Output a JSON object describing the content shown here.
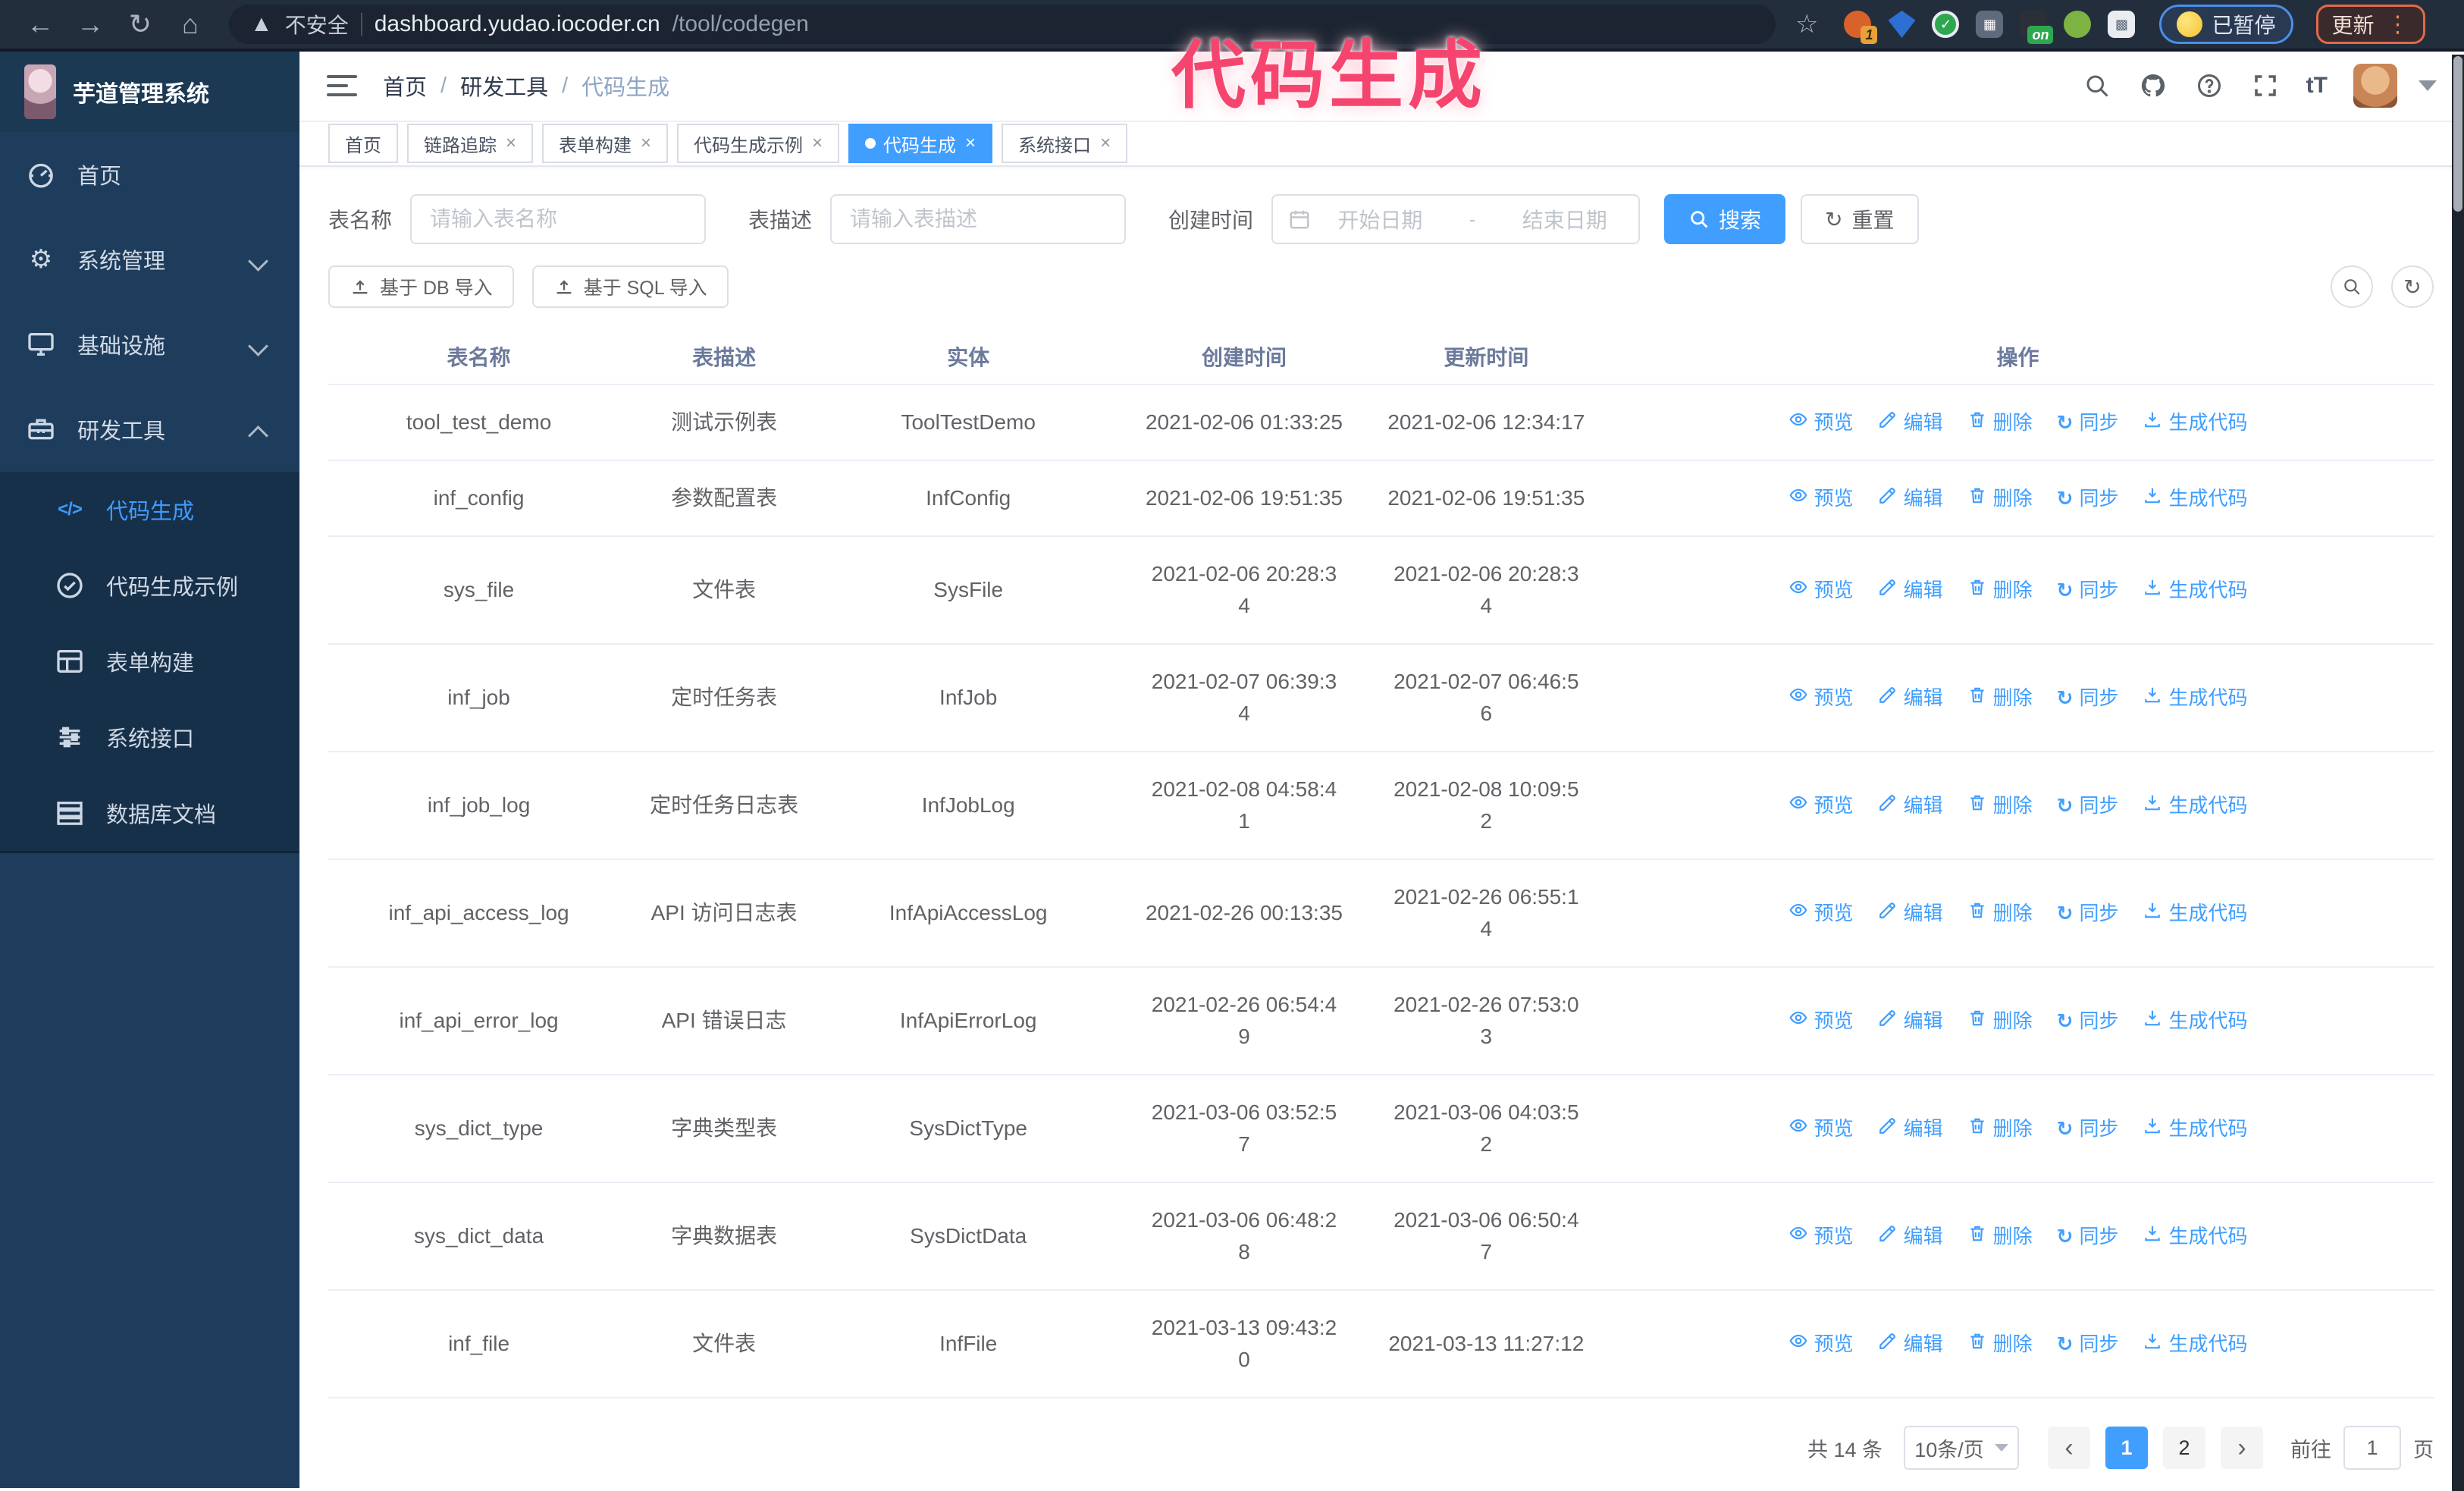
{
  "annotation": {
    "text": "代码生成",
    "color": "#f5456f"
  },
  "browser": {
    "nav_icons": [
      "back-icon",
      "forward-icon",
      "reload-icon",
      "home-icon"
    ],
    "security_label": "不安全",
    "url_host": "dashboard.yudao.iocoder.cn",
    "url_path": "/tool/codegen",
    "bookmark_icon": "star-icon",
    "extension_icons": [
      "orange-extension-icon",
      "blue-gem-extension-icon",
      "green-check-extension-icon",
      "grid-extension-icon",
      "on-badge-extension-icon",
      "green-robot-extension-icon",
      "puzzle-extensions-icon"
    ],
    "paused_label": "已暂停",
    "update_label": "更新"
  },
  "sidebar": {
    "logo_title": "芋道管理系统",
    "menu": [
      {
        "label": "首页",
        "icon": "dashboard",
        "arrow": ""
      },
      {
        "label": "系统管理",
        "icon": "gear",
        "arrow": "down"
      },
      {
        "label": "基础设施",
        "icon": "monitor",
        "arrow": "down"
      },
      {
        "label": "研发工具",
        "icon": "toolbox",
        "arrow": "up"
      }
    ],
    "submenu": [
      {
        "label": "代码生成",
        "icon": "code",
        "active": true
      },
      {
        "label": "代码生成示例",
        "icon": "example",
        "active": false
      },
      {
        "label": "表单构建",
        "icon": "form",
        "active": false
      },
      {
        "label": "系统接口",
        "icon": "api",
        "active": false
      },
      {
        "label": "数据库文档",
        "icon": "dbdoc",
        "active": false
      }
    ]
  },
  "header": {
    "breadcrumb": [
      "首页",
      "研发工具",
      "代码生成"
    ],
    "right_icons": [
      "search-icon",
      "github-icon",
      "help-icon",
      "fullscreen-icon",
      "font-size-icon",
      "avatar",
      "caret-down-icon"
    ]
  },
  "tabs": [
    {
      "label": "首页",
      "closable": false,
      "active": false
    },
    {
      "label": "链路追踪",
      "closable": true,
      "active": false
    },
    {
      "label": "表单构建",
      "closable": true,
      "active": false
    },
    {
      "label": "代码生成示例",
      "closable": true,
      "active": false
    },
    {
      "label": "代码生成",
      "closable": true,
      "active": true
    },
    {
      "label": "系统接口",
      "closable": true,
      "active": false
    }
  ],
  "filters": {
    "table_name_label": "表名称",
    "table_name_placeholder": "请输入表名称",
    "table_desc_label": "表描述",
    "table_desc_placeholder": "请输入表描述",
    "create_time_label": "创建时间",
    "date_start_placeholder": "开始日期",
    "date_separator": "-",
    "date_end_placeholder": "结束日期",
    "search_label": "搜索",
    "reset_label": "重置"
  },
  "toolbar": {
    "import_db_label": "基于 DB 导入",
    "import_sql_label": "基于 SQL 导入",
    "circle_icons": [
      "search-circle-icon",
      "refresh-circle-icon"
    ]
  },
  "table": {
    "columns": [
      "表名称",
      "表描述",
      "实体",
      "创建时间",
      "更新时间",
      "操作"
    ],
    "action_labels": [
      "预览",
      "编辑",
      "删除",
      "同步",
      "生成代码"
    ],
    "action_icons": [
      "eye",
      "pencil",
      "trash",
      "sync",
      "download"
    ],
    "rows": [
      {
        "name": "tool_test_demo",
        "desc": "测试示例表",
        "entity": "ToolTestDemo",
        "created": "2021-02-06 01:33:25",
        "updated": "2021-02-06 12:34:17"
      },
      {
        "name": "inf_config",
        "desc": "参数配置表",
        "entity": "InfConfig",
        "created": "2021-02-06 19:51:35",
        "updated": "2021-02-06 19:51:35"
      },
      {
        "name": "sys_file",
        "desc": "文件表",
        "entity": "SysFile",
        "created": "2021-02-06 20:28:3\n4",
        "updated": "2021-02-06 20:28:3\n4"
      },
      {
        "name": "inf_job",
        "desc": "定时任务表",
        "entity": "InfJob",
        "created": "2021-02-07 06:39:3\n4",
        "updated": "2021-02-07 06:46:5\n6"
      },
      {
        "name": "inf_job_log",
        "desc": "定时任务日志表",
        "entity": "InfJobLog",
        "created": "2021-02-08 04:58:4\n1",
        "updated": "2021-02-08 10:09:5\n2"
      },
      {
        "name": "inf_api_access_log",
        "desc": "API 访问日志表",
        "entity": "InfApiAccessLog",
        "created": "2021-02-26 00:13:35",
        "updated": "2021-02-26 06:55:1\n4"
      },
      {
        "name": "inf_api_error_log",
        "desc": "API 错误日志",
        "entity": "InfApiErrorLog",
        "created": "2021-02-26 06:54:4\n9",
        "updated": "2021-02-26 07:53:0\n3"
      },
      {
        "name": "sys_dict_type",
        "desc": "字典类型表",
        "entity": "SysDictType",
        "created": "2021-03-06 03:52:5\n7",
        "updated": "2021-03-06 04:03:5\n2"
      },
      {
        "name": "sys_dict_data",
        "desc": "字典数据表",
        "entity": "SysDictData",
        "created": "2021-03-06 06:48:2\n8",
        "updated": "2021-03-06 06:50:4\n7"
      },
      {
        "name": "inf_file",
        "desc": "文件表",
        "entity": "InfFile",
        "created": "2021-03-13 09:43:2\n0",
        "updated": "2021-03-13 11:27:12"
      }
    ]
  },
  "pagination": {
    "total_label": "共 14 条",
    "page_size_label": "10条/页",
    "pages": [
      "1",
      "2"
    ],
    "active_page": "1",
    "goto_label": "前往",
    "goto_value": "1",
    "page_suffix_label": "页"
  }
}
